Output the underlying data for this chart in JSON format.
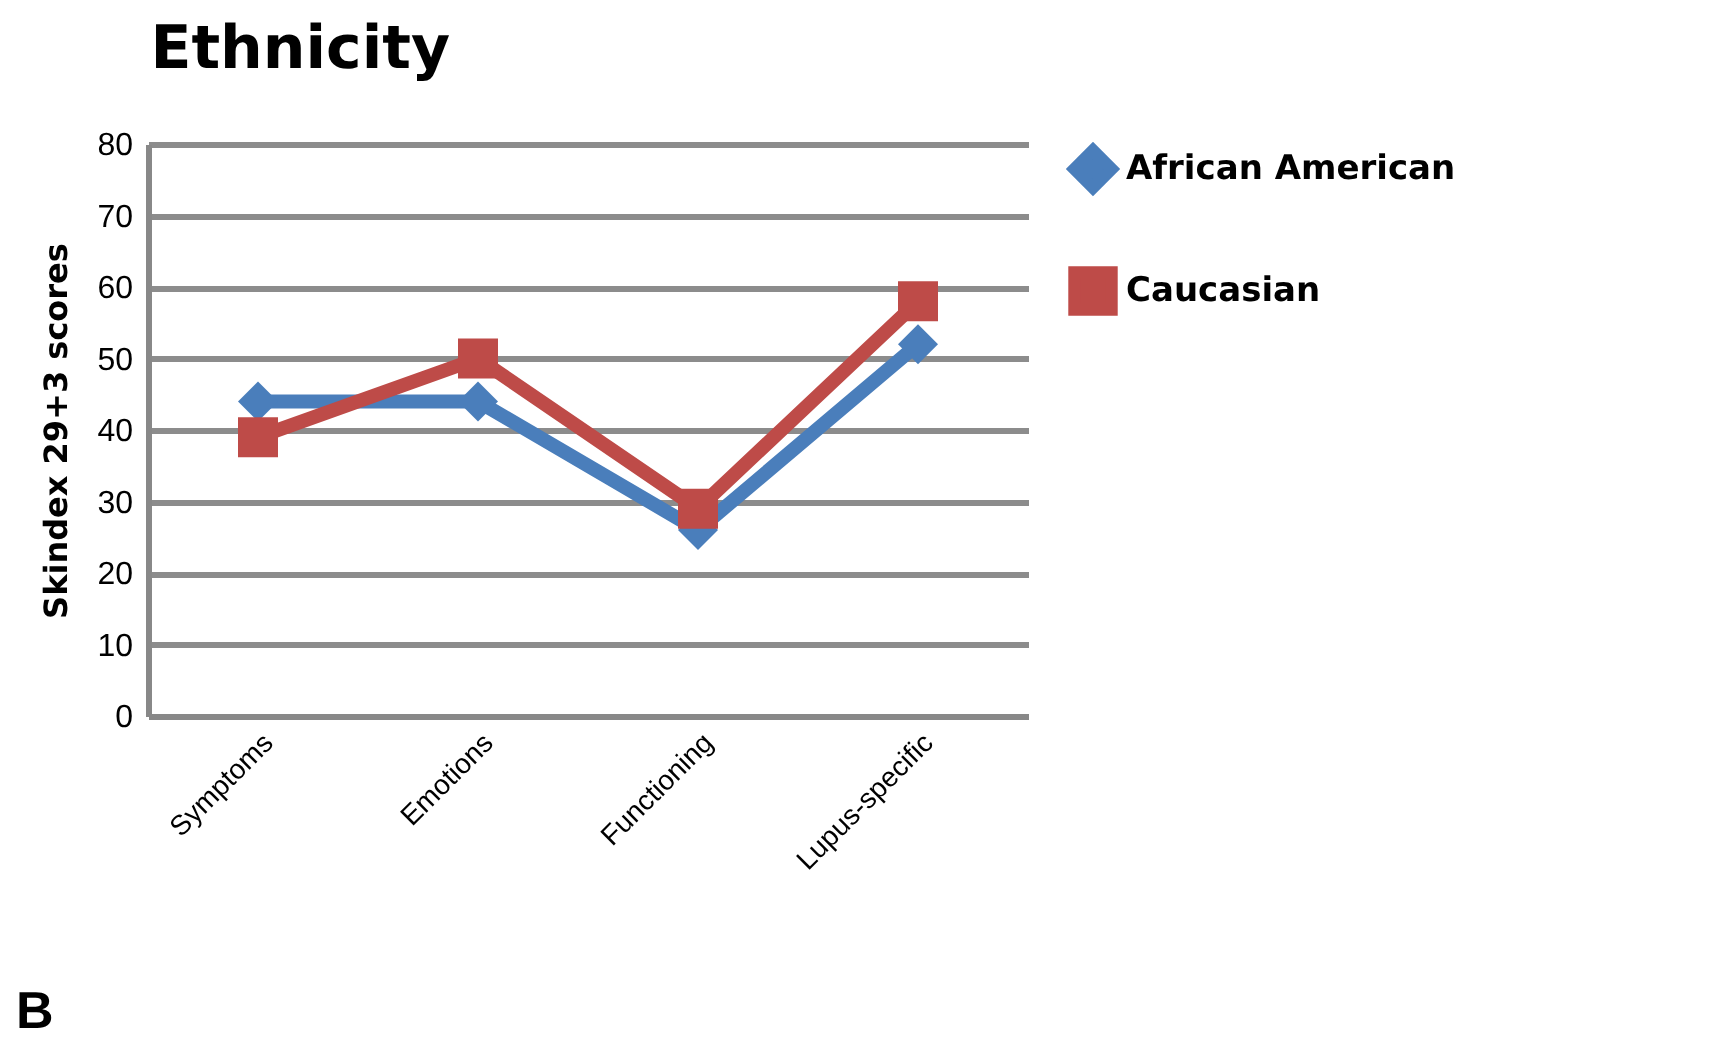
{
  "chart_data": {
    "type": "line",
    "title": "Ethnicity",
    "ylabel": "Skindex 29+3 scores",
    "categories": [
      "Symptoms",
      "Emotions",
      "Functioning",
      "Lupus-specific"
    ],
    "series": [
      {
        "name": "African American",
        "color": "#4a7ebb",
        "values": [
          44,
          44,
          26,
          52
        ],
        "marker": "diamond"
      },
      {
        "name": "Caucasian",
        "color": "#be4b48",
        "values": [
          39,
          50,
          29,
          58
        ],
        "marker": "square"
      }
    ],
    "ylim": [
      0,
      80
    ],
    "yticks": [
      0,
      10,
      20,
      30,
      40,
      50,
      60,
      70,
      80
    ],
    "grid": "y",
    "legend": "right",
    "annotations": [
      "B"
    ]
  }
}
